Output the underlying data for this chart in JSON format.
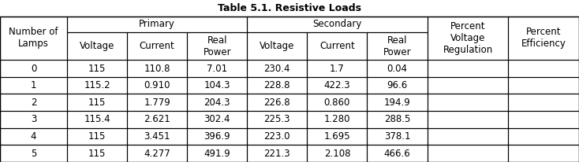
{
  "title": "Table 5.1. Resistive Loads",
  "col_groups": [
    {
      "label": "Primary",
      "span": 3
    },
    {
      "label": "Secondary",
      "span": 3
    }
  ],
  "header_row1": [
    "Number of\nLamps",
    "Primary",
    "",
    "",
    "Secondary",
    "",
    "",
    "Percent\nVoltage\nRegulation",
    "Percent\nEfficiency"
  ],
  "header_row2": [
    "",
    "Voltage",
    "Current",
    "Real\nPower",
    "Voltage",
    "Current",
    "Real\nPower",
    "",
    ""
  ],
  "columns": [
    "Number of\nLamps",
    "Voltage",
    "Current",
    "Real\nPower",
    "Voltage",
    "Current",
    "Real\nPower",
    "Percent\nVoltage\nRegulation",
    "Percent\nEfficiency"
  ],
  "rows": [
    [
      "0",
      "115",
      "110.8",
      "7.01",
      "230.4",
      "1.7",
      "0.04",
      "",
      ""
    ],
    [
      "1",
      "115.2",
      "0.910",
      "104.3",
      "228.8",
      "422.3",
      "96.6",
      "",
      ""
    ],
    [
      "2",
      "115",
      "1.779",
      "204.3",
      "226.8",
      "0.860",
      "194.9",
      "",
      ""
    ],
    [
      "3",
      "115.4",
      "2.621",
      "302.4",
      "225.3",
      "1.280",
      "288.5",
      "",
      ""
    ],
    [
      "4",
      "115",
      "3.451",
      "396.9",
      "223.0",
      "1.695",
      "378.1",
      "",
      ""
    ],
    [
      "5",
      "115",
      "4.277",
      "491.9",
      "221.3",
      "2.108",
      "466.6",
      "",
      ""
    ]
  ],
  "bg_color": "#ffffff",
  "text_color": "#000000",
  "title_fontsize": 9,
  "cell_fontsize": 8.5
}
